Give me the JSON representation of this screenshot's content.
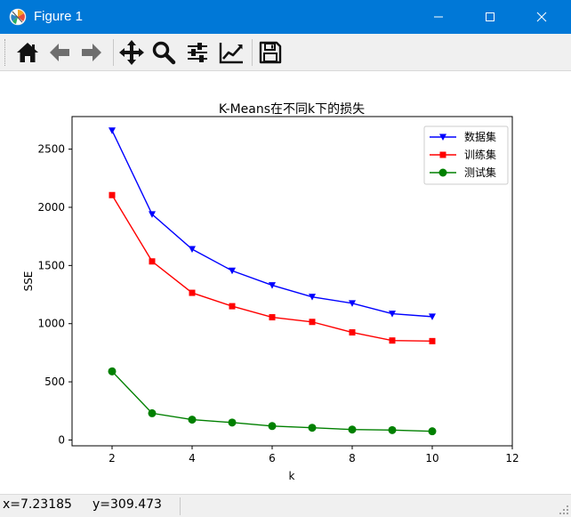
{
  "window": {
    "title": "Figure 1",
    "title_bar_color": "#0078d7",
    "icons": [
      "matplotlib-icon",
      "minimize-icon",
      "maximize-icon",
      "close-icon"
    ]
  },
  "toolbar": {
    "tools": [
      {
        "name": "home",
        "icon": "home-icon"
      },
      {
        "name": "back",
        "icon": "arrow-left-icon"
      },
      {
        "name": "forward",
        "icon": "arrow-right-icon"
      },
      {
        "name": "pan",
        "icon": "move-icon"
      },
      {
        "name": "zoom",
        "icon": "magnifier-icon"
      },
      {
        "name": "subplots",
        "icon": "sliders-icon"
      },
      {
        "name": "edit-axes",
        "icon": "line-chart-icon"
      },
      {
        "name": "save",
        "icon": "floppy-disk-icon"
      }
    ]
  },
  "chart_data": {
    "type": "line",
    "title": "K-Means在不同k下的损失",
    "xlabel": "k",
    "ylabel": "SSE",
    "xlim": [
      1,
      12
    ],
    "ylim": [
      -50,
      2780
    ],
    "xticks": [
      2,
      4,
      6,
      8,
      10,
      12
    ],
    "yticks": [
      0,
      500,
      1000,
      1500,
      2000,
      2500
    ],
    "grid": false,
    "legend_position": "top-right",
    "x": [
      2,
      3,
      4,
      5,
      6,
      7,
      8,
      9,
      10
    ],
    "series": [
      {
        "name": "数据集",
        "color": "#0000ff",
        "marker": "triangle-down",
        "values": [
          2660,
          1940,
          1640,
          1455,
          1330,
          1230,
          1175,
          1085,
          1060
        ]
      },
      {
        "name": "训练集",
        "color": "#ff0000",
        "marker": "square",
        "values": [
          2105,
          1535,
          1265,
          1150,
          1055,
          1015,
          925,
          855,
          850
        ]
      },
      {
        "name": "测试集",
        "color": "#008000",
        "marker": "circle",
        "values": [
          590,
          230,
          175,
          150,
          120,
          105,
          90,
          85,
          75
        ]
      }
    ]
  },
  "status": {
    "x_readout": "x=7.23185",
    "y_readout": "y=309.473"
  }
}
